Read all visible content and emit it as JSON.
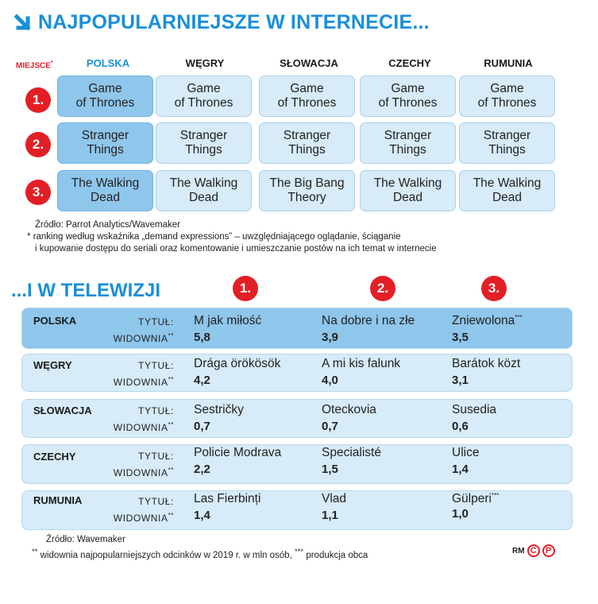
{
  "title": "NAJPOPULARNIEJSZE W INTERNECIE...",
  "place_label": "MIEJSCE",
  "place_mark": "*",
  "countries_header": [
    "POLSKA",
    "WĘGRY",
    "SŁOWACJA",
    "CZECHY",
    "RUMUNIA"
  ],
  "ranks": [
    "1.",
    "2.",
    "3."
  ],
  "internet": [
    {
      "line1": [
        "Game",
        "Game",
        "Game",
        "Game",
        "Game"
      ],
      "line2": [
        "of Thrones",
        "of Thrones",
        "of Thrones",
        "of Thrones",
        "of Thrones"
      ]
    },
    {
      "line1": [
        "Stranger",
        "Stranger",
        "Stranger",
        "Stranger",
        "Stranger"
      ],
      "line2": [
        "Things",
        "Things",
        "Things",
        "Things",
        "Things"
      ]
    },
    {
      "line1": [
        "The Walking",
        "The Walking",
        "The Big Bang",
        "The Walking",
        "The Walking"
      ],
      "line2": [
        "Dead",
        "Dead",
        "Theory",
        "Dead",
        "Dead"
      ]
    }
  ],
  "source1": "Źródło: Parrot Analytics/Wavemaker",
  "footnote1_mark": "*",
  "footnote1_line1": "ranking według wskaźnika „demand expressions” – uwzględniającego oglądanie, ściąganie",
  "footnote1_line2": "i kupowanie dostępu do seriali oraz komentowanie i umieszczanie postów na ich temat w internecie",
  "section2_title": "...I W TELEWIZJI",
  "tv_ranks": [
    "1.",
    "2.",
    "3."
  ],
  "tv_label_title": "TYTUŁ:",
  "tv_label_audience": "WIDOWNIA",
  "tv_label_audience_mark": "**",
  "tv": [
    {
      "country": "POLSKA",
      "shows": [
        "M jak miłość",
        "Na dobre i na złe",
        "Zniewolona"
      ],
      "marks": [
        "",
        "",
        "***"
      ],
      "values": [
        "5,8",
        "3,9",
        "3,5"
      ]
    },
    {
      "country": "WĘGRY",
      "shows": [
        "Drága örökösök",
        "A mi kis falunk",
        "Barátok közt"
      ],
      "marks": [
        "",
        "",
        ""
      ],
      "values": [
        "4,2",
        "4,0",
        "3,1"
      ]
    },
    {
      "country": "SŁOWACJA",
      "shows": [
        "Sestričky",
        "Oteckovia",
        "Susedia"
      ],
      "marks": [
        "",
        "",
        ""
      ],
      "values": [
        "0,7",
        "0,7",
        "0,6"
      ]
    },
    {
      "country": "CZECHY",
      "shows": [
        "Policie Modrava",
        "Specialisté",
        "Ulice"
      ],
      "marks": [
        "",
        "",
        ""
      ],
      "values": [
        "2,2",
        "1,5",
        "1,4"
      ]
    },
    {
      "country": "RUMUNIA",
      "shows": [
        "Las Fierbinți",
        "Vlad",
        "Gülperi"
      ],
      "marks": [
        "",
        "",
        "***"
      ],
      "values": [
        "1,4",
        "1,1",
        "1,0"
      ]
    }
  ],
  "source2": "Źródło: Wavemaker",
  "footnote2_mark": "**",
  "footnote2_text": "widownia najpopularniejszych odcinków w 2019 r. w mln osób,",
  "footnote3_mark": "***",
  "footnote3_text": "produkcja obca",
  "logo_rm": "RM",
  "logo_c": "C",
  "logo_p": "P",
  "colors": {
    "accent_blue": "#1a8fd8",
    "cell_light": "#d7ebf8",
    "cell_highlight": "#8fc6ec",
    "rank_red": "#e31f26"
  }
}
